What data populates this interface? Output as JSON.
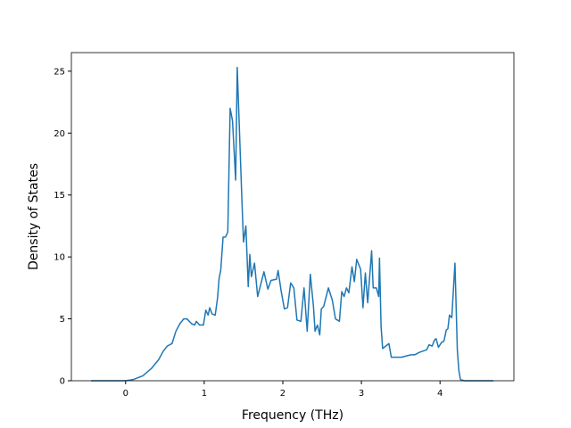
{
  "chart_data": {
    "type": "line",
    "x_label": "Frequency (THz)",
    "y_label": "Density of States",
    "series": [
      {
        "name": "DOS",
        "color": "#1f77b4",
        "x": [
          -0.44,
          0,
          0.1,
          0.22,
          0.33,
          0.42,
          0.48,
          0.53,
          0.59,
          0.64,
          0.69,
          0.74,
          0.78,
          0.84,
          0.88,
          0.9,
          0.94,
          0.99,
          1.02,
          1.05,
          1.07,
          1.1,
          1.14,
          1.17,
          1.19,
          1.21,
          1.24,
          1.27,
          1.3,
          1.33,
          1.36,
          1.4,
          1.42,
          1.48,
          1.5,
          1.53,
          1.56,
          1.58,
          1.6,
          1.64,
          1.68,
          1.76,
          1.81,
          1.85,
          1.92,
          1.94,
          1.98,
          2.02,
          2.06,
          2.1,
          2.14,
          2.18,
          2.23,
          2.27,
          2.31,
          2.35,
          2.39,
          2.41,
          2.44,
          2.47,
          2.49,
          2.52,
          2.58,
          2.63,
          2.67,
          2.72,
          2.75,
          2.78,
          2.81,
          2.84,
          2.88,
          2.91,
          2.94,
          2.99,
          3.02,
          3.05,
          3.08,
          3.13,
          3.15,
          3.19,
          3.22,
          3.23,
          3.25,
          3.27,
          3.35,
          3.38,
          3.51,
          3.63,
          3.68,
          3.74,
          3.83,
          3.86,
          3.9,
          3.93,
          3.95,
          3.98,
          4.02,
          4.05,
          4.08,
          4.1,
          4.12,
          4.15,
          4.17,
          4.19,
          4.22,
          4.24,
          4.26,
          4.31,
          4.68
        ],
        "values": [
          0,
          0,
          0.1,
          0.4,
          1.0,
          1.7,
          2.4,
          2.8,
          3.0,
          4.0,
          4.6,
          5.0,
          5.0,
          4.6,
          4.5,
          4.8,
          4.5,
          4.5,
          5.7,
          5.3,
          5.9,
          5.4,
          5.3,
          6.7,
          8.3,
          8.9,
          11.6,
          11.6,
          12.0,
          22.0,
          21.0,
          16.2,
          25.3,
          14.5,
          11.2,
          12.5,
          7.6,
          10.2,
          8.4,
          9.5,
          6.8,
          8.8,
          7.4,
          8.1,
          8.2,
          8.9,
          7.2,
          5.8,
          5.9,
          7.9,
          7.5,
          4.9,
          4.8,
          7.5,
          4.0,
          8.6,
          6.0,
          4.0,
          4.5,
          3.7,
          5.8,
          6.0,
          7.5,
          6.5,
          5.0,
          4.8,
          7.2,
          6.8,
          7.5,
          7.1,
          9.2,
          8.0,
          9.8,
          9.0,
          5.9,
          8.7,
          6.3,
          10.5,
          7.5,
          7.5,
          6.8,
          9.9,
          4.4,
          2.6,
          3.0,
          1.9,
          1.9,
          2.1,
          2.1,
          2.3,
          2.5,
          2.9,
          2.8,
          3.3,
          3.4,
          2.7,
          3.1,
          3.2,
          4.1,
          4.2,
          5.3,
          5.1,
          7.3,
          9.5,
          2.5,
          0.8,
          0.1,
          0,
          0
        ]
      }
    ],
    "xlim": [
      -0.69,
      4.94
    ],
    "xticks": [
      0,
      1,
      2,
      3,
      4
    ],
    "ylim": [
      0,
      26.5
    ],
    "yticks": [
      0,
      5,
      10,
      15,
      20,
      25
    ]
  }
}
